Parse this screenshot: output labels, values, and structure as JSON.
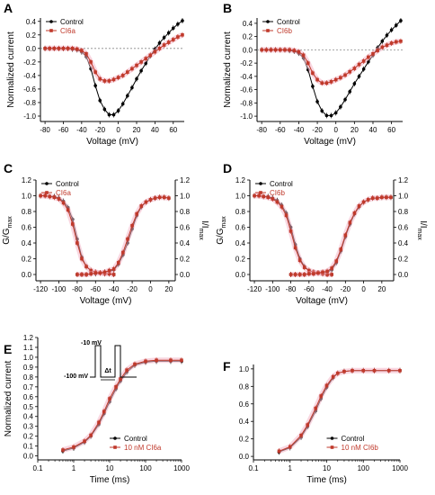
{
  "colors": {
    "control": "#000000",
    "drug": "#c0392b",
    "halo": "#f4b6c8"
  },
  "chart_data": [
    {
      "type": "line",
      "panel_label": "A",
      "xlabel": "Voltage (mV)",
      "ylabel": "Normalized current",
      "xlim": [
        -85,
        72
      ],
      "ylim": [
        -1.08,
        0.45
      ],
      "xticks": [
        -80,
        -60,
        -40,
        -20,
        0,
        20,
        40,
        60
      ],
      "yticks": [
        -1.0,
        -0.8,
        -0.6,
        -0.4,
        -0.2,
        0.0,
        0.2,
        0.4
      ],
      "zero_line": true,
      "legend_loc": "top-left",
      "x": [
        -80,
        -75,
        -70,
        -65,
        -60,
        -55,
        -50,
        -45,
        -40,
        -35,
        -30,
        -25,
        -20,
        -15,
        -10,
        -5,
        0,
        5,
        10,
        15,
        20,
        25,
        30,
        35,
        40,
        45,
        50,
        55,
        60,
        65,
        70
      ],
      "series": [
        {
          "name": "Control",
          "color_key": "control",
          "values": [
            0.0,
            0.0,
            0.0,
            0.0,
            0.0,
            0.0,
            -0.01,
            -0.02,
            -0.05,
            -0.12,
            -0.3,
            -0.55,
            -0.77,
            -0.9,
            -0.98,
            -0.98,
            -0.92,
            -0.82,
            -0.7,
            -0.58,
            -0.45,
            -0.33,
            -0.22,
            -0.11,
            -0.01,
            0.08,
            0.16,
            0.23,
            0.3,
            0.36,
            0.41
          ]
        },
        {
          "name": "CI6a",
          "color_key": "drug",
          "values": [
            0.0,
            0.0,
            0.0,
            0.0,
            0.0,
            0.0,
            0.0,
            -0.01,
            -0.03,
            -0.08,
            -0.2,
            -0.35,
            -0.45,
            -0.48,
            -0.48,
            -0.46,
            -0.43,
            -0.4,
            -0.35,
            -0.3,
            -0.25,
            -0.2,
            -0.15,
            -0.1,
            -0.05,
            0.0,
            0.05,
            0.09,
            0.13,
            0.17,
            0.2
          ]
        }
      ]
    },
    {
      "type": "line",
      "panel_label": "B",
      "xlabel": "Voltage (mV)",
      "ylabel": "Normalized current",
      "xlim": [
        -85,
        72
      ],
      "ylim": [
        -1.08,
        0.48
      ],
      "xticks": [
        -80,
        -60,
        -40,
        -20,
        0,
        20,
        40,
        60
      ],
      "yticks": [
        -1.0,
        -0.8,
        -0.6,
        -0.4,
        -0.2,
        0.0,
        0.2,
        0.4
      ],
      "zero_line": true,
      "legend_loc": "top-left",
      "x": [
        -80,
        -75,
        -70,
        -65,
        -60,
        -55,
        -50,
        -45,
        -40,
        -35,
        -30,
        -25,
        -20,
        -15,
        -10,
        -5,
        0,
        5,
        10,
        15,
        20,
        25,
        30,
        35,
        40,
        45,
        50,
        55,
        60,
        65,
        70
      ],
      "series": [
        {
          "name": "Control",
          "color_key": "control",
          "values": [
            0.0,
            0.0,
            0.0,
            0.0,
            0.0,
            0.0,
            -0.01,
            -0.02,
            -0.05,
            -0.12,
            -0.3,
            -0.55,
            -0.78,
            -0.92,
            -0.99,
            -0.99,
            -0.95,
            -0.86,
            -0.75,
            -0.63,
            -0.51,
            -0.4,
            -0.29,
            -0.18,
            -0.08,
            0.03,
            0.13,
            0.22,
            0.3,
            0.37,
            0.44
          ]
        },
        {
          "name": "CI6b",
          "color_key": "drug",
          "values": [
            0.0,
            0.0,
            0.0,
            0.0,
            0.0,
            0.0,
            0.0,
            -0.01,
            -0.03,
            -0.08,
            -0.2,
            -0.35,
            -0.45,
            -0.5,
            -0.5,
            -0.48,
            -0.45,
            -0.42,
            -0.38,
            -0.33,
            -0.28,
            -0.22,
            -0.17,
            -0.11,
            -0.06,
            -0.01,
            0.04,
            0.07,
            0.1,
            0.12,
            0.13
          ]
        }
      ]
    },
    {
      "type": "line",
      "panel_label": "C",
      "xlabel": "Voltage (mV)",
      "ylabel": "G/G",
      "ylabel_sub": "max",
      "ylabel_right": "I/I",
      "ylabel_right_sub": "max",
      "xlim": [
        -125,
        27
      ],
      "ylim": [
        -0.08,
        1.2
      ],
      "xticks": [
        -120,
        -100,
        -80,
        -60,
        -40,
        -20,
        0,
        20
      ],
      "yticks": [
        0.0,
        0.2,
        0.4,
        0.6,
        0.8,
        1.0,
        1.2
      ],
      "yticks_right": [
        0.0,
        0.2,
        0.4,
        0.6,
        0.8,
        1.0,
        1.2
      ],
      "legend_loc": "top-left",
      "series": [
        {
          "name": "Control",
          "color_key": "control",
          "x": [
            -120,
            -115,
            -110,
            -105,
            -100,
            -95,
            -90,
            -85,
            -80,
            -75,
            -70,
            -65,
            -60,
            -55,
            -50,
            -45,
            -40
          ],
          "values": [
            1.0,
            1.0,
            0.99,
            0.99,
            0.97,
            0.93,
            0.85,
            0.7,
            0.45,
            0.22,
            0.1,
            0.05,
            0.03,
            0.02,
            0.01,
            0.01,
            0.0
          ]
        },
        {
          "name": "",
          "color_key": "control",
          "x": [
            -80,
            -75,
            -70,
            -65,
            -60,
            -55,
            -50,
            -45,
            -40,
            -35,
            -30,
            -25,
            -20,
            -15,
            -10,
            -5,
            0,
            5,
            10,
            15,
            20
          ],
          "values": [
            0.0,
            0.0,
            0.0,
            0.01,
            0.01,
            0.02,
            0.03,
            0.04,
            0.06,
            0.13,
            0.25,
            0.4,
            0.58,
            0.75,
            0.86,
            0.92,
            0.95,
            0.97,
            0.98,
            0.98,
            0.97
          ]
        },
        {
          "name": "CI6a",
          "color_key": "drug",
          "x": [
            -120,
            -115,
            -110,
            -105,
            -100,
            -95,
            -90,
            -85,
            -80,
            -75,
            -70,
            -65,
            -60,
            -55,
            -50,
            -45,
            -40
          ],
          "values": [
            1.0,
            1.0,
            0.99,
            0.98,
            0.96,
            0.91,
            0.82,
            0.64,
            0.4,
            0.2,
            0.1,
            0.05,
            0.03,
            0.02,
            0.01,
            0.01,
            0.0
          ]
        },
        {
          "name": "",
          "color_key": "drug",
          "x": [
            -80,
            -75,
            -70,
            -65,
            -60,
            -55,
            -50,
            -45,
            -40,
            -35,
            -30,
            -25,
            -20,
            -15,
            -10,
            -5,
            0,
            5,
            10,
            15,
            20
          ],
          "values": [
            0.0,
            0.0,
            0.0,
            0.01,
            0.02,
            0.02,
            0.03,
            0.05,
            0.07,
            0.15,
            0.28,
            0.45,
            0.62,
            0.77,
            0.87,
            0.92,
            0.95,
            0.97,
            0.98,
            0.98,
            0.97
          ]
        }
      ]
    },
    {
      "type": "line",
      "panel_label": "D",
      "xlabel": "Voltage (mV)",
      "ylabel": "G/G",
      "ylabel_sub": "max",
      "ylabel_right": "I/I",
      "ylabel_right_sub": "max",
      "xlim": [
        -125,
        33
      ],
      "ylim": [
        -0.08,
        1.2
      ],
      "xticks": [
        -120,
        -100,
        -80,
        -60,
        -40,
        -20,
        0,
        20
      ],
      "yticks": [
        0.0,
        0.2,
        0.4,
        0.6,
        0.8,
        1.0,
        1.2
      ],
      "yticks_right": [
        0.0,
        0.2,
        0.4,
        0.6,
        0.8,
        1.0,
        1.2
      ],
      "legend_loc": "top-left",
      "series": [
        {
          "name": "Control",
          "color_key": "control",
          "x": [
            -120,
            -115,
            -110,
            -105,
            -100,
            -95,
            -90,
            -85,
            -80,
            -75,
            -70,
            -65,
            -60,
            -55,
            -50,
            -45,
            -40,
            -35
          ],
          "values": [
            1.0,
            1.0,
            0.99,
            0.99,
            0.97,
            0.94,
            0.88,
            0.78,
            0.6,
            0.38,
            0.2,
            0.1,
            0.05,
            0.03,
            0.02,
            0.01,
            0.0,
            0.0
          ]
        },
        {
          "name": "",
          "color_key": "control",
          "x": [
            -80,
            -75,
            -70,
            -65,
            -60,
            -55,
            -50,
            -45,
            -40,
            -35,
            -30,
            -25,
            -20,
            -15,
            -10,
            -5,
            0,
            5,
            10,
            15,
            20,
            25,
            30
          ],
          "values": [
            0.0,
            0.0,
            0.0,
            0.0,
            0.01,
            0.01,
            0.02,
            0.02,
            0.03,
            0.06,
            0.15,
            0.3,
            0.48,
            0.64,
            0.77,
            0.86,
            0.92,
            0.95,
            0.97,
            0.97,
            0.98,
            0.98,
            0.98
          ]
        },
        {
          "name": "CI6b",
          "color_key": "drug",
          "x": [
            -120,
            -115,
            -110,
            -105,
            -100,
            -95,
            -90,
            -85,
            -80,
            -75,
            -70,
            -65,
            -60,
            -55,
            -50,
            -45,
            -40,
            -35
          ],
          "values": [
            1.0,
            1.0,
            0.99,
            0.98,
            0.96,
            0.92,
            0.86,
            0.75,
            0.55,
            0.34,
            0.18,
            0.09,
            0.05,
            0.03,
            0.02,
            0.01,
            0.0,
            0.0
          ]
        },
        {
          "name": "",
          "color_key": "drug",
          "x": [
            -80,
            -75,
            -70,
            -65,
            -60,
            -55,
            -50,
            -45,
            -40,
            -35,
            -30,
            -25,
            -20,
            -15,
            -10,
            -5,
            0,
            5,
            10,
            15,
            20,
            25,
            30
          ],
          "values": [
            0.0,
            0.0,
            0.0,
            0.0,
            0.01,
            0.01,
            0.02,
            0.03,
            0.04,
            0.08,
            0.17,
            0.32,
            0.5,
            0.66,
            0.78,
            0.87,
            0.92,
            0.95,
            0.97,
            0.97,
            0.98,
            0.98,
            0.98
          ]
        }
      ]
    },
    {
      "type": "line",
      "panel_label": "E",
      "xlabel": "Time (ms)",
      "ylabel": "Normalized current",
      "xscale": "log",
      "xlim": [
        0.1,
        1000
      ],
      "ylim": [
        -0.04,
        1.2
      ],
      "xticks": [
        0.1,
        1,
        10,
        100,
        1000
      ],
      "xtick_labels": [
        "0.1",
        "1",
        "10",
        "100",
        "1000"
      ],
      "yticks": [
        0.0,
        0.1,
        0.2,
        0.3,
        0.4,
        0.5,
        0.6,
        0.7,
        0.8,
        0.9,
        1.0,
        1.1,
        1.2
      ],
      "legend_loc": "bottom-right",
      "inset": {
        "label_top": "-10 mV",
        "label_bottom": "-100 mV",
        "label_gap": "Δt"
      },
      "x": [
        0.5,
        1,
        2,
        3,
        5,
        7,
        10,
        15,
        20,
        30,
        50,
        100,
        200,
        500,
        1000
      ],
      "series": [
        {
          "name": "Control",
          "color_key": "control",
          "values": [
            0.05,
            0.08,
            0.14,
            0.2,
            0.32,
            0.43,
            0.55,
            0.68,
            0.76,
            0.85,
            0.92,
            0.95,
            0.96,
            0.96,
            0.96
          ]
        },
        {
          "name": "10 nM CI6a",
          "color_key": "drug",
          "values": [
            0.06,
            0.09,
            0.15,
            0.21,
            0.34,
            0.45,
            0.58,
            0.7,
            0.78,
            0.87,
            0.93,
            0.96,
            0.97,
            0.97,
            0.97
          ]
        }
      ]
    },
    {
      "type": "line",
      "panel_label": "F",
      "xlabel": "Time (ms)",
      "ylabel": "",
      "xscale": "log",
      "xlim": [
        0.1,
        1000
      ],
      "ylim": [
        -0.04,
        1.05
      ],
      "xticks": [
        0.1,
        1,
        10,
        100,
        1000
      ],
      "xtick_labels": [
        "0.1",
        "1",
        "10",
        "100",
        "1000"
      ],
      "yticks": [
        0.0,
        0.2,
        0.4,
        0.6,
        0.8,
        1.0
      ],
      "legend_loc": "bottom-right",
      "x": [
        0.5,
        1,
        2,
        3,
        5,
        7,
        10,
        15,
        20,
        30,
        50,
        100,
        200,
        500,
        1000
      ],
      "series": [
        {
          "name": "Control",
          "color_key": "control",
          "values": [
            0.05,
            0.1,
            0.22,
            0.34,
            0.52,
            0.66,
            0.79,
            0.9,
            0.95,
            0.97,
            0.98,
            0.98,
            0.98,
            0.98,
            0.98
          ]
        },
        {
          "name": "10 nM CI6b",
          "color_key": "drug",
          "values": [
            0.06,
            0.11,
            0.24,
            0.36,
            0.55,
            0.69,
            0.81,
            0.91,
            0.95,
            0.97,
            0.98,
            0.98,
            0.98,
            0.98,
            0.98
          ]
        }
      ]
    }
  ]
}
